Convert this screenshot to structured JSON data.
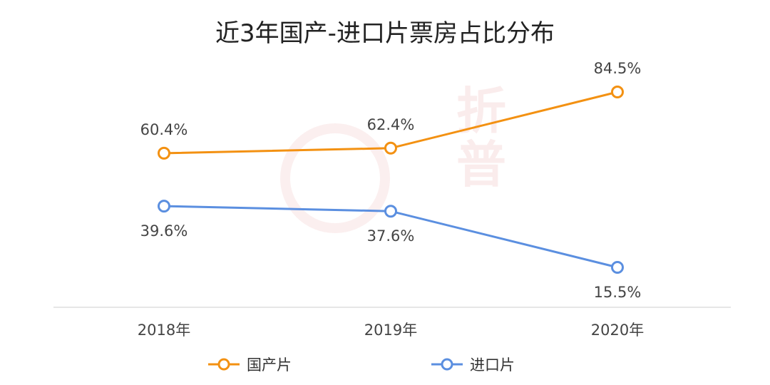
{
  "chart_data": {
    "type": "line",
    "title": "近3年国产-进口片票房占比分布",
    "categories": [
      "2018年",
      "2019年",
      "2020年"
    ],
    "ylim": [
      0,
      100
    ],
    "grid": false,
    "legend": "bottom",
    "series": [
      {
        "name": "国产片",
        "values": [
          60.4,
          62.4,
          84.5
        ],
        "labels": [
          "60.4%",
          "62.4%",
          "84.5%"
        ],
        "color": "#F39112"
      },
      {
        "name": "进口片",
        "values": [
          39.6,
          37.6,
          15.5
        ],
        "labels": [
          "39.6%",
          "37.6%",
          "15.5%"
        ],
        "color": "#5B8FE0"
      }
    ]
  }
}
